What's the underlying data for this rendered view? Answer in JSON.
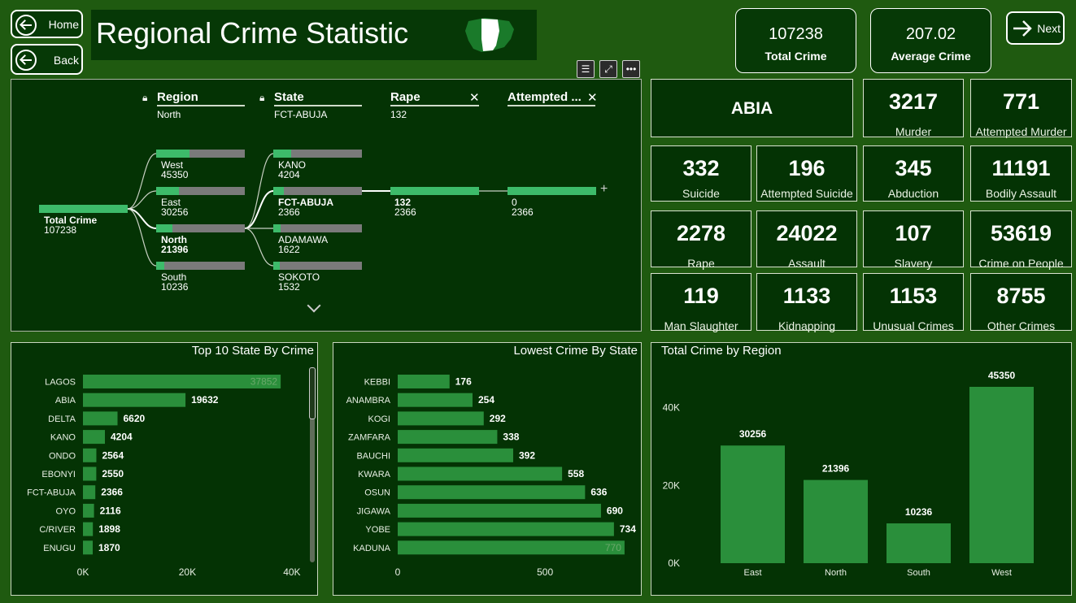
{
  "nav": {
    "home_label": "Home",
    "back_label": "Back",
    "next_label": "Next"
  },
  "title": "Regional Crime Statistic",
  "colors": {
    "background": "#1f5a10",
    "panel": "#043304",
    "bar": "#2a8f3b",
    "node_fill": "#3dbb6a",
    "node_track": "#7a7a7a"
  },
  "kpis": [
    {
      "value": "107238",
      "label": "Total Crime"
    },
    {
      "value": "207.02",
      "label": "Average Crime"
    }
  ],
  "state_card": {
    "value": "ABIA"
  },
  "stat_cards": [
    {
      "value": "3217",
      "label": "Murder"
    },
    {
      "value": "771",
      "label": "Attempted Murder"
    },
    {
      "value": "332",
      "label": "Suicide"
    },
    {
      "value": "196",
      "label": "Attempted Suicide"
    },
    {
      "value": "345",
      "label": "Abduction"
    },
    {
      "value": "11191",
      "label": "Bodily Assault"
    },
    {
      "value": "2278",
      "label": "Rape"
    },
    {
      "value": "24022",
      "label": "Assault"
    },
    {
      "value": "107",
      "label": "Slavery"
    },
    {
      "value": "53619",
      "label": "Crime on People"
    },
    {
      "value": "119",
      "label": "Man Slaughter"
    },
    {
      "value": "1133",
      "label": "Kidnapping"
    },
    {
      "value": "1153",
      "label": "Unusual Crimes"
    },
    {
      "value": "8755",
      "label": "Other Crimes"
    }
  ],
  "tree": {
    "levels": [
      {
        "header": "Region",
        "selected": "North",
        "locked": true
      },
      {
        "header": "State",
        "selected": "FCT-ABUJA",
        "locked": true
      },
      {
        "header": "Rape",
        "selected": "132",
        "locked": false
      },
      {
        "header": "Attempted ...",
        "selected": "",
        "locked": false
      }
    ],
    "root": {
      "label": "Total Crime",
      "value": "107238",
      "fill": 1.0
    },
    "regions": [
      {
        "label": "West",
        "value": "45350",
        "fill": 0.38
      },
      {
        "label": "East",
        "value": "30256",
        "fill": 0.26
      },
      {
        "label": "North",
        "value": "21396",
        "fill": 0.18
      },
      {
        "label": "South",
        "value": "10236",
        "fill": 0.09
      }
    ],
    "states": [
      {
        "label": "KANO",
        "value": "4204",
        "fill": 0.2
      },
      {
        "label": "FCT-ABUJA",
        "value": "2366",
        "fill": 0.12
      },
      {
        "label": "ADAMAWA",
        "value": "1622",
        "fill": 0.08
      },
      {
        "label": "SOKOTO",
        "value": "1532",
        "fill": 0.07
      }
    ],
    "rape": {
      "label": "132",
      "value": "2366",
      "fill": 1.0
    },
    "attempted": {
      "label": "0",
      "value": "2366",
      "fill": 1.0
    }
  },
  "chart_data": [
    {
      "type": "bar",
      "orientation": "horizontal",
      "title": "Top 10 State By Crime",
      "categories": [
        "LAGOS",
        "ABIA",
        "DELTA",
        "KANO",
        "ONDO",
        "EBONYI",
        "FCT-ABUJA",
        "OYO",
        "C/RIVER",
        "ENUGU"
      ],
      "values": [
        37852,
        19632,
        6620,
        4204,
        2564,
        2550,
        2366,
        2116,
        1898,
        1870
      ],
      "xlim": [
        0,
        45000
      ],
      "x_ticks": [
        "0K",
        "20K",
        "40K"
      ],
      "x_tick_values": [
        0,
        20000,
        40000
      ]
    },
    {
      "type": "bar",
      "orientation": "horizontal",
      "title": "Lowest Crime By State",
      "categories": [
        "KEBBI",
        "ANAMBRA",
        "KOGI",
        "ZAMFARA",
        "BAUCHI",
        "KWARA",
        "OSUN",
        "JIGAWA",
        "YOBE",
        "KADUNA"
      ],
      "values": [
        176,
        254,
        292,
        338,
        392,
        558,
        636,
        690,
        734,
        770
      ],
      "xlim": [
        0,
        900
      ],
      "x_ticks": [
        "0",
        "500"
      ],
      "x_tick_values": [
        0,
        500
      ]
    },
    {
      "type": "bar",
      "title": "Total Crime by Region",
      "categories": [
        "East",
        "North",
        "South",
        "West"
      ],
      "values": [
        30256,
        21396,
        10236,
        45350
      ],
      "ylim": [
        0,
        45350
      ],
      "y_ticks": [
        "0K",
        "20K",
        "40K"
      ],
      "y_tick_values": [
        0,
        20000,
        40000
      ]
    }
  ]
}
